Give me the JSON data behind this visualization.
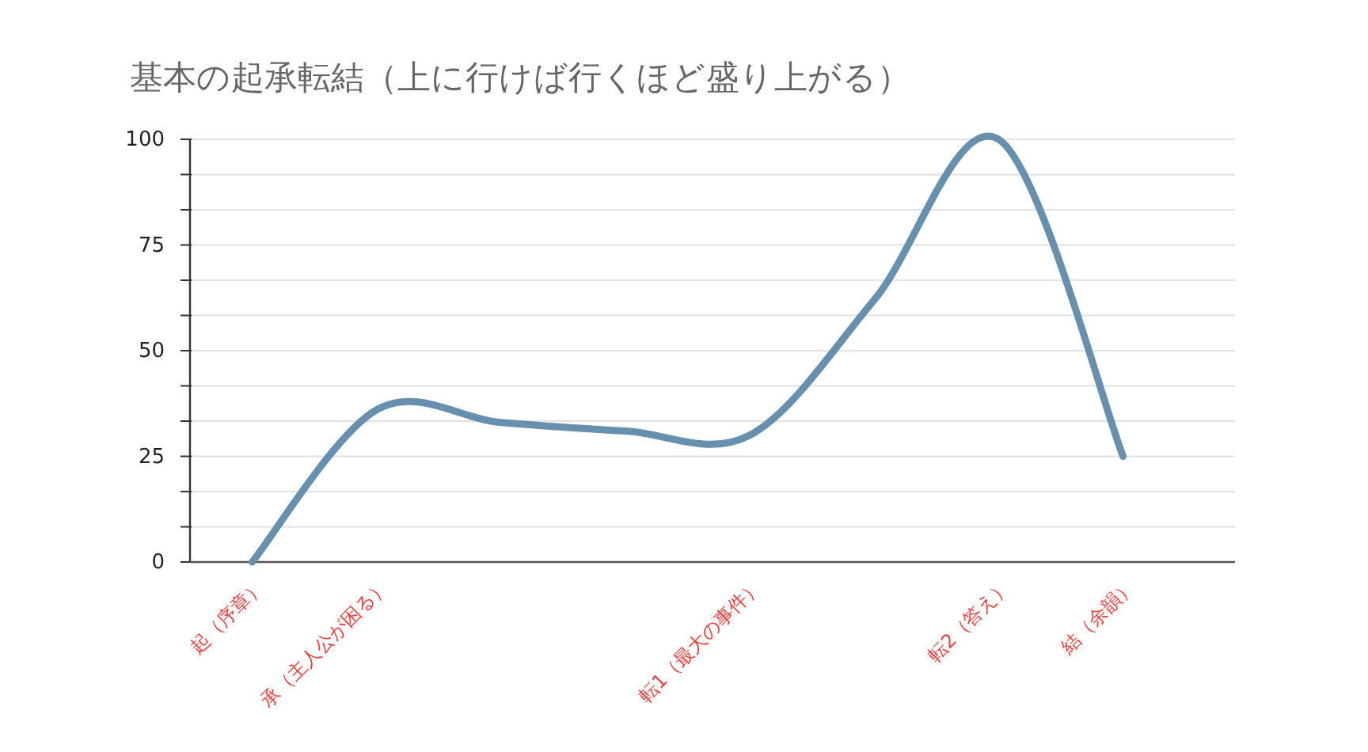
{
  "chart_data": {
    "type": "line",
    "title": "基本の起承転結（上に行けば行くほど盛り上がる）",
    "categories": [
      "起（序章）",
      "承（主人公が困る）",
      null,
      null,
      "転1（最大の事件）",
      null,
      "転2（答え）",
      "結（余韻）"
    ],
    "series": [
      {
        "color": "#6690ad",
        "values": [
          0,
          36,
          33,
          31,
          30,
          62,
          100,
          25
        ]
      }
    ],
    "ylim": [
      0,
      100
    ],
    "yticks": [
      0,
      {
        "value": 8.33,
        "label": null
      },
      {
        "value": 16.67,
        "label": null
      },
      25,
      {
        "value": 33.33,
        "label": null
      },
      {
        "value": 41.67,
        "label": null
      },
      50,
      {
        "value": 58.33,
        "label": null
      },
      {
        "value": 66.67,
        "label": null
      },
      75,
      {
        "value": 83.33,
        "label": null
      },
      {
        "value": 91.67,
        "label": null
      },
      100
    ],
    "grid": "y",
    "marker": "none",
    "line_style": "solid"
  }
}
